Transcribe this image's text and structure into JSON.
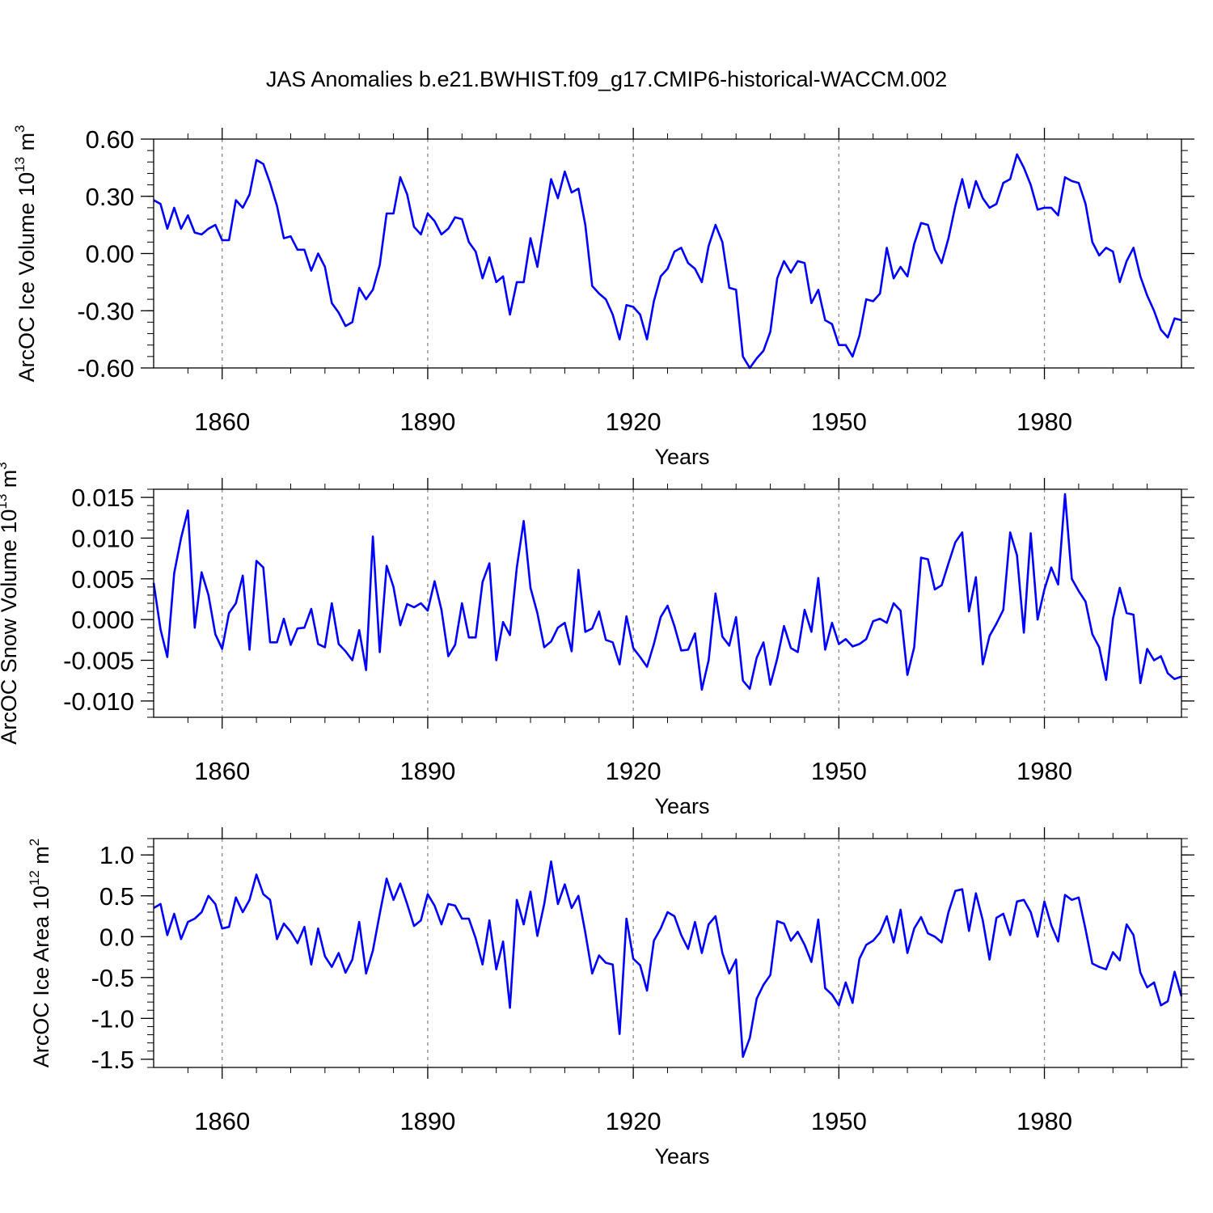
{
  "figure": {
    "title": "JAS Anomalies b.e21.BWHIST.f09_g17.CMIP6-historical-WACCM.002"
  },
  "chart_data": [
    {
      "type": "line",
      "ylabel_main": "ArcOC Ice Volume 10",
      "ylabel_exp": "13",
      "ylabel_unit": " m",
      "ylabel_unit_exp": "3",
      "xlabel": "Years",
      "xlim": [
        1850,
        2000
      ],
      "ylim": [
        -0.6,
        0.6
      ],
      "x_ticks": [
        1860,
        1890,
        1920,
        1950,
        1980
      ],
      "x_tick_labels": [
        "1860",
        "1890",
        "1920",
        "1950",
        "1980"
      ],
      "y_ticks": [
        0.6,
        0.3,
        0.0,
        -0.3,
        -0.6
      ],
      "y_tick_labels": [
        "0.60",
        "0.30",
        "0.00",
        "-0.30",
        "-0.60"
      ],
      "y_minor_step": 0.06,
      "color": "#0000ff",
      "x_start": 1850,
      "values": [
        0.28,
        0.26,
        0.13,
        0.24,
        0.13,
        0.2,
        0.11,
        0.1,
        0.13,
        0.15,
        0.07,
        0.07,
        0.28,
        0.24,
        0.31,
        0.49,
        0.47,
        0.37,
        0.25,
        0.08,
        0.09,
        0.02,
        0.02,
        -0.09,
        0.0,
        -0.07,
        -0.26,
        -0.31,
        -0.38,
        -0.36,
        -0.18,
        -0.24,
        -0.19,
        -0.06,
        0.21,
        0.21,
        0.4,
        0.31,
        0.14,
        0.1,
        0.21,
        0.17,
        0.1,
        0.13,
        0.19,
        0.18,
        0.06,
        0.01,
        -0.13,
        -0.02,
        -0.15,
        -0.12,
        -0.32,
        -0.15,
        -0.15,
        0.08,
        -0.07,
        0.16,
        0.39,
        0.29,
        0.43,
        0.32,
        0.34,
        0.15,
        -0.17,
        -0.21,
        -0.24,
        -0.32,
        -0.45,
        -0.27,
        -0.28,
        -0.32,
        -0.45,
        -0.25,
        -0.12,
        -0.08,
        0.01,
        0.03,
        -0.05,
        -0.08,
        -0.15,
        0.04,
        0.15,
        0.06,
        -0.18,
        -0.19,
        -0.54,
        -0.6,
        -0.55,
        -0.51,
        -0.41,
        -0.13,
        -0.04,
        -0.1,
        -0.04,
        -0.05,
        -0.26,
        -0.19,
        -0.35,
        -0.37,
        -0.48,
        -0.48,
        -0.54,
        -0.43,
        -0.24,
        -0.25,
        -0.21,
        0.03,
        -0.13,
        -0.07,
        -0.12,
        0.05,
        0.16,
        0.15,
        0.02,
        -0.05,
        0.08,
        0.25,
        0.39,
        0.24,
        0.38,
        0.29,
        0.24,
        0.26,
        0.37,
        0.39,
        0.52,
        0.45,
        0.36,
        0.23,
        0.24,
        0.24,
        0.2,
        0.4,
        0.38,
        0.37,
        0.26,
        0.06,
        -0.01,
        0.03,
        0.01,
        -0.15,
        -0.04,
        0.03,
        -0.12,
        -0.22,
        -0.3,
        -0.4,
        -0.44,
        -0.34,
        -0.35
      ]
    },
    {
      "type": "line",
      "ylabel_main": "ArcOC Snow Volume 10",
      "ylabel_exp": "13",
      "ylabel_unit": " m",
      "ylabel_unit_exp": "3",
      "xlabel": "Years",
      "xlim": [
        1850,
        2000
      ],
      "ylim": [
        -0.012,
        0.016
      ],
      "x_ticks": [
        1860,
        1890,
        1920,
        1950,
        1980
      ],
      "x_tick_labels": [
        "1860",
        "1890",
        "1920",
        "1950",
        "1980"
      ],
      "y_ticks": [
        0.015,
        0.01,
        0.005,
        0.0,
        -0.005,
        -0.01
      ],
      "y_tick_labels": [
        "0.015",
        "0.010",
        "0.005",
        "0.000",
        "-0.005",
        "-0.010"
      ],
      "y_minor_step": 0.001,
      "color": "#0000ff",
      "x_start": 1850,
      "values": [
        0.0045,
        -0.0012,
        -0.0046,
        0.0057,
        0.01,
        0.0134,
        -0.001,
        0.0058,
        0.003,
        -0.0018,
        -0.0036,
        0.0008,
        0.002,
        0.0054,
        -0.0037,
        0.0072,
        0.0064,
        -0.0028,
        -0.0028,
        0.0001,
        -0.0031,
        -0.0011,
        -0.001,
        0.0013,
        -0.003,
        -0.0034,
        0.002,
        -0.003,
        -0.0039,
        -0.005,
        -0.0013,
        -0.0062,
        0.0102,
        -0.004,
        0.0066,
        0.004,
        -0.0007,
        0.0019,
        0.0015,
        0.002,
        0.0011,
        0.0047,
        0.0012,
        -0.0045,
        -0.0031,
        0.002,
        -0.0022,
        -0.0022,
        0.0046,
        0.0069,
        -0.005,
        -0.0003,
        -0.0019,
        0.0064,
        0.0121,
        0.0039,
        0.0008,
        -0.0034,
        -0.0027,
        -0.001,
        -0.0004,
        -0.0039,
        0.0061,
        -0.0015,
        -0.0011,
        0.001,
        -0.0025,
        -0.0028,
        -0.0055,
        0.0004,
        -0.0035,
        -0.0046,
        -0.0058,
        -0.003,
        0.0003,
        0.0017,
        -0.0008,
        -0.0038,
        -0.0037,
        -0.0017,
        -0.0086,
        -0.005,
        0.0032,
        -0.0021,
        -0.0032,
        0.0003,
        -0.0075,
        -0.0085,
        -0.0047,
        -0.0028,
        -0.008,
        -0.0048,
        -0.0008,
        -0.0035,
        -0.004,
        0.0012,
        -0.0015,
        0.0051,
        -0.0037,
        -0.0004,
        -0.003,
        -0.0024,
        -0.0033,
        -0.003,
        -0.0024,
        -0.0002,
        0.0001,
        -0.0004,
        0.002,
        0.0011,
        -0.0068,
        -0.0034,
        0.0076,
        0.0074,
        0.0037,
        0.0042,
        0.0069,
        0.0095,
        0.0107,
        0.001,
        0.0052,
        -0.0055,
        -0.002,
        -0.0005,
        0.0012,
        0.0107,
        0.0079,
        -0.0016,
        0.0106,
        0.0,
        0.0037,
        0.0064,
        0.0043,
        0.0154,
        0.005,
        0.0035,
        0.0022,
        -0.0018,
        -0.0034,
        -0.0074,
        0.0001,
        0.0039,
        0.0008,
        0.0006,
        -0.0078,
        -0.0036,
        -0.005,
        -0.0045,
        -0.0066,
        -0.0073,
        -0.007
      ]
    },
    {
      "type": "line",
      "ylabel_main": "ArcOC Ice Area 10",
      "ylabel_exp": "12",
      "ylabel_unit": " m",
      "ylabel_unit_exp": "2",
      "xlabel": "Years",
      "xlim": [
        1850,
        2000
      ],
      "ylim": [
        -1.6,
        1.2
      ],
      "x_ticks": [
        1860,
        1890,
        1920,
        1950,
        1980
      ],
      "x_tick_labels": [
        "1860",
        "1890",
        "1920",
        "1950",
        "1980"
      ],
      "y_ticks": [
        1.0,
        0.5,
        0.0,
        -0.5,
        -1.0,
        -1.5
      ],
      "y_tick_labels": [
        "1.0",
        "0.5",
        "0.0",
        "-0.5",
        "-1.0",
        "-1.5"
      ],
      "y_minor_step": 0.1,
      "color": "#0000ff",
      "x_start": 1850,
      "values": [
        0.35,
        0.4,
        0.02,
        0.28,
        -0.03,
        0.18,
        0.22,
        0.3,
        0.5,
        0.4,
        0.1,
        0.12,
        0.48,
        0.3,
        0.45,
        0.76,
        0.52,
        0.45,
        -0.03,
        0.16,
        0.06,
        -0.08,
        0.12,
        -0.34,
        0.1,
        -0.24,
        -0.37,
        -0.2,
        -0.44,
        -0.28,
        0.18,
        -0.45,
        -0.17,
        0.28,
        0.71,
        0.45,
        0.65,
        0.4,
        0.13,
        0.2,
        0.52,
        0.38,
        0.15,
        0.4,
        0.38,
        0.22,
        0.22,
        -0.02,
        -0.34,
        0.2,
        -0.4,
        -0.06,
        -0.87,
        0.45,
        0.15,
        0.55,
        0.01,
        0.4,
        0.92,
        0.4,
        0.64,
        0.35,
        0.5,
        0.05,
        -0.45,
        -0.23,
        -0.32,
        -0.34,
        -1.19,
        0.22,
        -0.27,
        -0.35,
        -0.66,
        -0.05,
        0.1,
        0.3,
        0.25,
        0.02,
        -0.15,
        0.18,
        -0.2,
        0.15,
        0.25,
        -0.2,
        -0.45,
        -0.28,
        -1.47,
        -1.24,
        -0.76,
        -0.59,
        -0.47,
        0.19,
        0.16,
        -0.05,
        0.06,
        -0.1,
        -0.31,
        0.21,
        -0.63,
        -0.71,
        -0.84,
        -0.56,
        -0.81,
        -0.27,
        -0.1,
        -0.05,
        0.05,
        0.25,
        -0.07,
        0.33,
        -0.2,
        0.1,
        0.24,
        0.04,
        0.0,
        -0.07,
        0.3,
        0.56,
        0.58,
        0.07,
        0.53,
        0.2,
        -0.28,
        0.23,
        0.28,
        0.02,
        0.43,
        0.45,
        0.3,
        0.0,
        0.43,
        0.14,
        -0.06,
        0.51,
        0.45,
        0.48,
        0.09,
        -0.33,
        -0.37,
        -0.4,
        -0.19,
        -0.29,
        0.15,
        0.02,
        -0.44,
        -0.62,
        -0.56,
        -0.84,
        -0.79,
        -0.43,
        -0.73
      ]
    }
  ]
}
